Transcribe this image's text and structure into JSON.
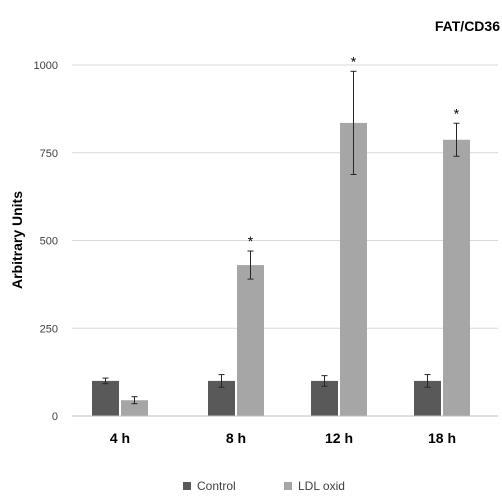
{
  "chart_data": {
    "type": "bar",
    "title": "FAT/CD36",
    "ylabel": "Arbitrary Units",
    "xlabel": "",
    "categories": [
      "4 h",
      "8 h",
      "12 h",
      "18 h"
    ],
    "ylim": [
      0,
      1000
    ],
    "yticks": [
      0,
      250,
      500,
      750,
      1000
    ],
    "grid": true,
    "legend_position": "bottom",
    "series": [
      {
        "name": "Control",
        "color": "#595959",
        "values": [
          100,
          100,
          100,
          100
        ],
        "errors": [
          8,
          18,
          15,
          18
        ]
      },
      {
        "name": "LDL oxid",
        "color": "#a6a6a6",
        "values": [
          45,
          430,
          835,
          787
        ],
        "errors": [
          10,
          40,
          147,
          47
        ]
      }
    ],
    "annotations": [
      {
        "category": "4 h",
        "series": "LDL oxid",
        "text": ""
      },
      {
        "category": "8 h",
        "series": "LDL oxid",
        "text": "*"
      },
      {
        "category": "12 h",
        "series": "LDL oxid",
        "text": "*"
      },
      {
        "category": "18 h",
        "series": "LDL oxid",
        "text": "*"
      }
    ]
  }
}
